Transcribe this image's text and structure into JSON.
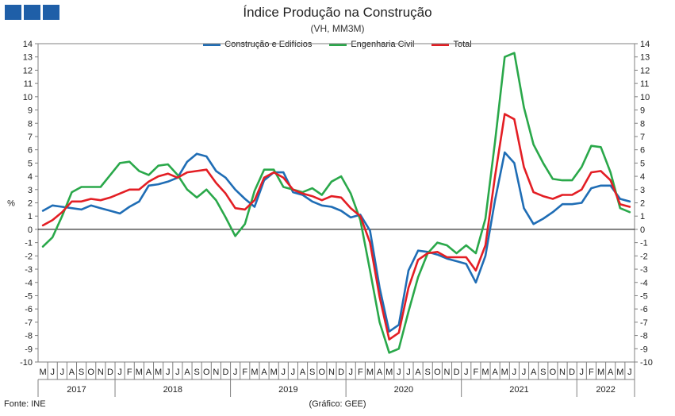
{
  "header": {
    "title": "Índice Produção na Construção",
    "subtitle": "(VH, MM3M)"
  },
  "footer": {
    "source": "Fonte: INE",
    "credit": "(Gráfico: GEE)"
  },
  "chart_data": {
    "type": "line",
    "ylabel": "%",
    "ylim": [
      -10,
      14
    ],
    "ystep": 1,
    "legend_position": "top-center",
    "month_labels": [
      "M",
      "J",
      "J",
      "A",
      "S",
      "O",
      "N",
      "D",
      "J",
      "F",
      "M",
      "A",
      "M",
      "J",
      "J",
      "A",
      "S",
      "O",
      "N",
      "D",
      "J",
      "F",
      "M",
      "A",
      "M",
      "J",
      "J",
      "A",
      "S",
      "O",
      "N",
      "D",
      "J",
      "F",
      "M",
      "A",
      "M",
      "J",
      "J",
      "A",
      "S",
      "O",
      "N",
      "D",
      "J",
      "F",
      "M",
      "A",
      "M",
      "J",
      "J",
      "A",
      "S",
      "O",
      "N",
      "D",
      "J",
      "F",
      "M",
      "A",
      "M",
      "J"
    ],
    "years": [
      {
        "label": "2017",
        "start": 0,
        "end": 7
      },
      {
        "label": "2018",
        "start": 8,
        "end": 19
      },
      {
        "label": "2019",
        "start": 20,
        "end": 31
      },
      {
        "label": "2020",
        "start": 32,
        "end": 43
      },
      {
        "label": "2021",
        "start": 44,
        "end": 55
      },
      {
        "label": "2022",
        "start": 56,
        "end": 61
      }
    ],
    "series": [
      {
        "name": "Construção e Edifícios",
        "color": "#1f6db5",
        "values": [
          1.4,
          1.8,
          1.7,
          1.6,
          1.5,
          1.8,
          1.6,
          1.4,
          1.2,
          1.7,
          2.1,
          3.3,
          3.4,
          3.6,
          3.9,
          5.1,
          5.7,
          5.5,
          4.4,
          3.9,
          3.0,
          2.3,
          1.7,
          3.7,
          4.3,
          4.3,
          2.8,
          2.6,
          2.1,
          1.8,
          1.7,
          1.4,
          0.9,
          1.1,
          -0.1,
          -4.4,
          -7.7,
          -7.2,
          -3.1,
          -1.6,
          -1.7,
          -1.9,
          -2.2,
          -2.4,
          -2.6,
          -4.0,
          -2.0,
          2.2,
          5.8,
          5.0,
          1.6,
          0.4,
          0.8,
          1.3,
          1.9,
          1.9,
          2.0,
          3.1,
          3.3,
          3.3,
          2.3,
          2.1
        ]
      },
      {
        "name": "Engenharia Civil",
        "color": "#2aa84a",
        "values": [
          -1.3,
          -0.6,
          1.0,
          2.8,
          3.2,
          3.2,
          3.2,
          4.1,
          5.0,
          5.1,
          4.4,
          4.1,
          4.8,
          4.9,
          4.1,
          3.0,
          2.4,
          3.0,
          2.2,
          0.9,
          -0.5,
          0.4,
          2.9,
          4.5,
          4.5,
          3.2,
          3.0,
          2.8,
          3.1,
          2.6,
          3.6,
          4.0,
          2.7,
          0.7,
          -3.1,
          -7.0,
          -9.3,
          -9.0,
          -6.2,
          -3.6,
          -1.8,
          -1.0,
          -1.2,
          -1.8,
          -1.2,
          -1.8,
          0.8,
          6.6,
          13.0,
          13.3,
          9.2,
          6.4,
          5.0,
          3.8,
          3.7,
          3.7,
          4.7,
          6.3,
          6.2,
          4.3,
          1.6,
          1.3
        ]
      },
      {
        "name": "Total",
        "color": "#e31e24",
        "values": [
          0.3,
          0.7,
          1.3,
          2.1,
          2.1,
          2.3,
          2.2,
          2.4,
          2.7,
          3.0,
          3.0,
          3.6,
          4.0,
          4.2,
          3.9,
          4.3,
          4.4,
          4.5,
          3.5,
          2.7,
          1.6,
          1.5,
          2.2,
          3.9,
          4.3,
          3.9,
          3.0,
          2.7,
          2.5,
          2.2,
          2.5,
          2.4,
          1.6,
          1.0,
          -1.0,
          -5.1,
          -8.3,
          -7.8,
          -4.4,
          -2.3,
          -1.8,
          -1.7,
          -2.1,
          -2.1,
          -2.1,
          -3.1,
          -1.2,
          4.0,
          8.7,
          8.3,
          4.7,
          2.8,
          2.5,
          2.3,
          2.6,
          2.6,
          3.0,
          4.3,
          4.4,
          3.7,
          1.9,
          1.7
        ]
      }
    ]
  }
}
